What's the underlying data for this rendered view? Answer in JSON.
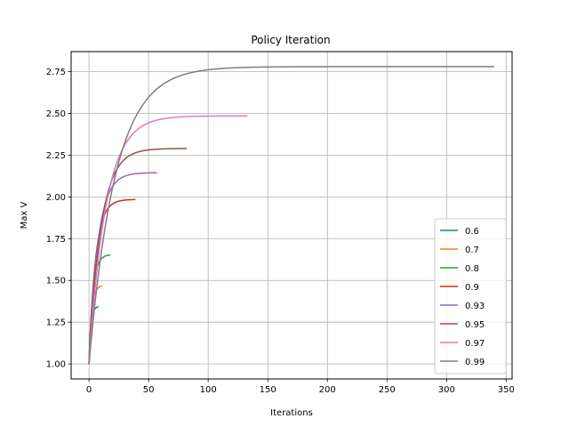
{
  "chart_data": {
    "type": "line",
    "title": "Policy Iteration",
    "xlabel": "Iterations",
    "ylabel": "Max V",
    "xlim": [
      -15,
      355
    ],
    "ylim": [
      0.91,
      2.87
    ],
    "xticks": [
      0,
      50,
      100,
      150,
      200,
      250,
      300,
      350
    ],
    "yticks": [
      1.0,
      1.25,
      1.5,
      1.75,
      2.0,
      2.25,
      2.5,
      2.75
    ],
    "grid": true,
    "legend_position": "lower-right",
    "series": [
      {
        "name": "0.6",
        "color": "#1f77b4",
        "start": 1.0,
        "plateau": 1.345,
        "iterations": 8,
        "tau": 1.6
      },
      {
        "name": "0.7",
        "color": "#ff7f0e",
        "start": 1.0,
        "plateau": 1.47,
        "iterations": 11,
        "tau": 2.2
      },
      {
        "name": "0.8",
        "color": "#2ca02c",
        "start": 1.0,
        "plateau": 1.655,
        "iterations": 18,
        "tau": 3.2
      },
      {
        "name": "0.9",
        "color": "#d62728",
        "start": 1.0,
        "plateau": 1.985,
        "iterations": 39,
        "tau": 5.5
      },
      {
        "name": "0.93",
        "color": "#9467bd",
        "start": 1.0,
        "plateau": 2.145,
        "iterations": 57,
        "tau": 7.5
      },
      {
        "name": "0.95",
        "color": "#8c564b",
        "start": 1.0,
        "plateau": 2.29,
        "iterations": 82,
        "tau": 10
      },
      {
        "name": "0.97",
        "color": "#e377c2",
        "start": 1.0,
        "plateau": 2.485,
        "iterations": 133,
        "tau": 14
      },
      {
        "name": "0.99",
        "color": "#7f7f7f",
        "start": 1.0,
        "plateau": 2.78,
        "iterations": 340,
        "tau": 22
      }
    ]
  }
}
